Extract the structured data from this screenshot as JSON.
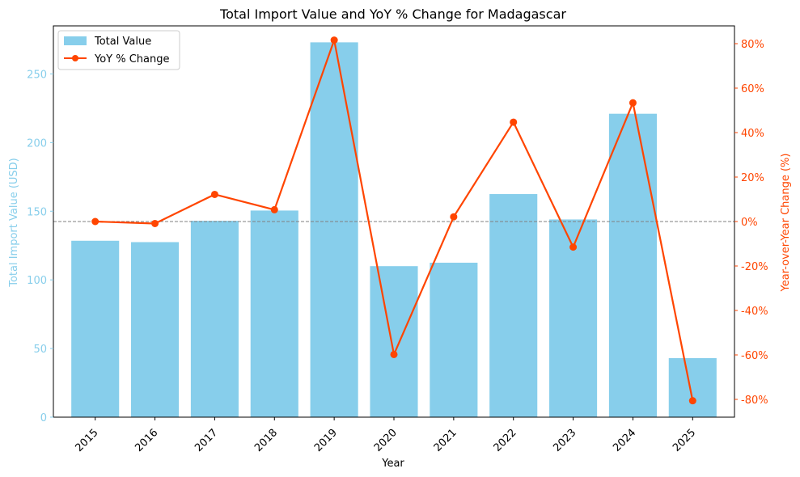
{
  "chart_data": {
    "type": "bar",
    "title": "Total Import Value and YoY % Change for Madagascar",
    "xlabel": "Year",
    "ylabel_left": "Total Import Value (USD)",
    "ylabel_right": "Year-over-Year Change (%)",
    "categories": [
      "2015",
      "2016",
      "2017",
      "2018",
      "2019",
      "2020",
      "2021",
      "2022",
      "2023",
      "2024",
      "2025"
    ],
    "series": [
      {
        "name": "Total Value",
        "type": "bar",
        "axis": "left",
        "color": "#87CEEB",
        "values": [
          128.5,
          127.5,
          143,
          150.5,
          273,
          110,
          112.5,
          162.5,
          144,
          221,
          43
        ]
      },
      {
        "name": "YoY % Change",
        "type": "line",
        "axis": "right",
        "color": "#FF4500",
        "values": [
          0,
          -0.9,
          12.2,
          5.3,
          81.6,
          -59.8,
          2.1,
          44.7,
          -11.5,
          53.4,
          -80.6
        ]
      }
    ],
    "ylim_left": [
      0,
      285
    ],
    "ylim_right": [
      -88,
      88
    ],
    "yticks_left": [
      0,
      50,
      100,
      150,
      200,
      250
    ],
    "yticks_right": [
      -80,
      -60,
      -40,
      -20,
      0,
      20,
      40,
      60,
      80
    ],
    "ytick_right_suffix": "%",
    "reference_line": {
      "axis": "right",
      "value": 0,
      "style": "dashed",
      "color": "#808080"
    },
    "legend_position": "top-left",
    "grid": false
  }
}
